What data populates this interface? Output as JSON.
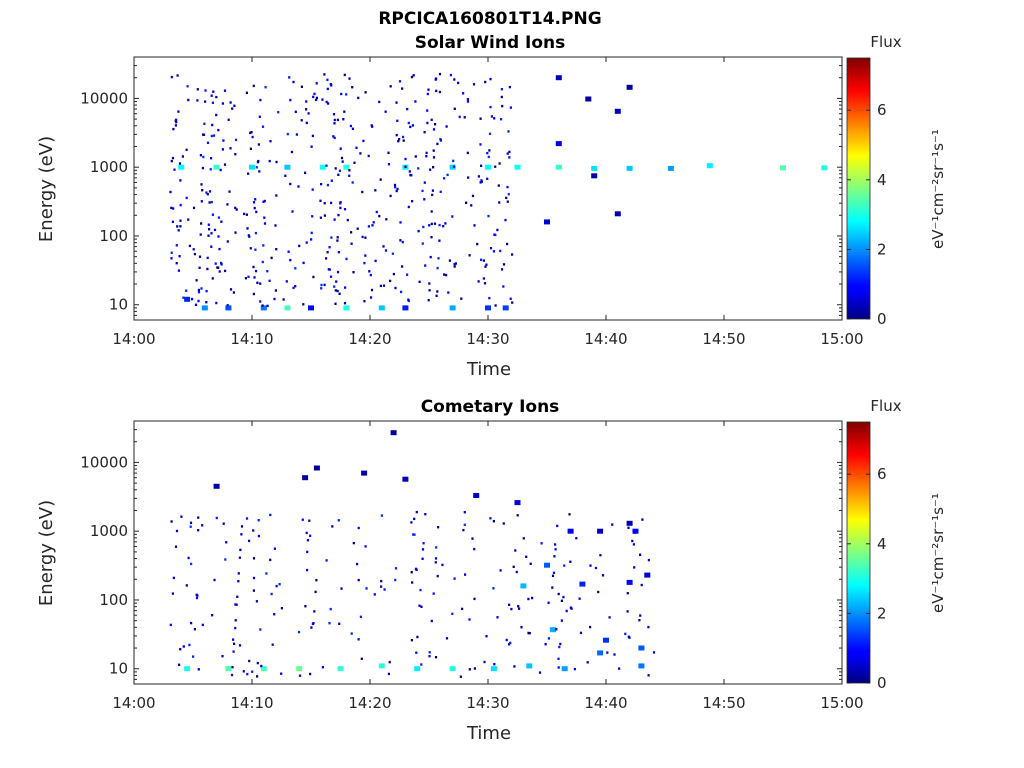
{
  "figure_title": "RPCICA160801T14.PNG",
  "colorbar": {
    "title": "Flux",
    "label": "eV⁻¹cm⁻²sr⁻¹s⁻¹",
    "ticks": [
      "0",
      "2",
      "4",
      "6"
    ],
    "range": [
      0,
      7.5
    ],
    "colormap": "jet"
  },
  "chart_data": [
    {
      "type": "heatmap",
      "title": "Solar Wind Ions",
      "xlabel": "Time",
      "ylabel": "Energy (eV)",
      "xlim": [
        "14:00",
        "15:00"
      ],
      "x_ticks": [
        "14:00",
        "14:10",
        "14:20",
        "14:30",
        "14:40",
        "14:50",
        "15:00"
      ],
      "y_scale": "log",
      "ylim": [
        6,
        40000
      ],
      "y_ticks": [
        "10",
        "100",
        "1000",
        "10000"
      ],
      "z_label": "Flux",
      "zlim": [
        0,
        7.5
      ],
      "cells": [
        {
          "t": "14:04",
          "e": 1000,
          "z": 2.8
        },
        {
          "t": "14:07",
          "e": 1000,
          "z": 3.2
        },
        {
          "t": "14:10",
          "e": 1000,
          "z": 2.6
        },
        {
          "t": "14:13",
          "e": 1000,
          "z": 2.4
        },
        {
          "t": "14:16",
          "e": 1000,
          "z": 2.9
        },
        {
          "t": "14:18",
          "e": 1000,
          "z": 3.1
        },
        {
          "t": "14:23",
          "e": 1000,
          "z": 2.7
        },
        {
          "t": "14:27",
          "e": 1000,
          "z": 2.5
        },
        {
          "t": "14:30",
          "e": 1000,
          "z": 2.8
        },
        {
          "t": "14:32.5",
          "e": 1000,
          "z": 2.9
        },
        {
          "t": "14:36",
          "e": 1000,
          "z": 3.2
        },
        {
          "t": "14:39",
          "e": 960,
          "z": 2.6
        },
        {
          "t": "14:42",
          "e": 960,
          "z": 2.4
        },
        {
          "t": "14:45.5",
          "e": 960,
          "z": 2.1
        },
        {
          "t": "14:48.8",
          "e": 1050,
          "z": 2.7
        },
        {
          "t": "14:55",
          "e": 980,
          "z": 3.4
        },
        {
          "t": "14:58.5",
          "e": 980,
          "z": 3.0
        },
        {
          "t": "14:38.5",
          "e": 9800,
          "z": 0.2
        },
        {
          "t": "14:41",
          "e": 6500,
          "z": 0.5
        },
        {
          "t": "14:42",
          "e": 14500,
          "z": 0.3
        },
        {
          "t": "14:36",
          "e": 20000,
          "z": 0.4
        },
        {
          "t": "14:41",
          "e": 210,
          "z": 0.4
        },
        {
          "t": "14:39",
          "e": 750,
          "z": 0.3
        },
        {
          "t": "14:35",
          "e": 160,
          "z": 0.6
        },
        {
          "t": "14:36",
          "e": 2200,
          "z": 0.8
        },
        {
          "t": "14:04.5",
          "e": 12,
          "z": 1.2
        },
        {
          "t": "14:06",
          "e": 9,
          "z": 2.0
        },
        {
          "t": "14:08",
          "e": 9,
          "z": 1.5
        },
        {
          "t": "14:11",
          "e": 9,
          "z": 1.8
        },
        {
          "t": "14:13",
          "e": 9,
          "z": 3.3
        },
        {
          "t": "14:15",
          "e": 9,
          "z": 1.0
        },
        {
          "t": "14:18",
          "e": 9,
          "z": 3.0
        },
        {
          "t": "14:21",
          "e": 9,
          "z": 2.4
        },
        {
          "t": "14:23",
          "e": 9,
          "z": 1.1
        },
        {
          "t": "14:27",
          "e": 9,
          "z": 2.2
        },
        {
          "t": "14:30",
          "e": 9,
          "z": 1.3
        },
        {
          "t": "14:31.5",
          "e": 9,
          "z": 1.4
        }
      ]
    },
    {
      "type": "heatmap",
      "title": "Cometary Ions",
      "xlabel": "Time",
      "ylabel": "Energy (eV)",
      "xlim": [
        "14:00",
        "15:00"
      ],
      "x_ticks": [
        "14:00",
        "14:10",
        "14:20",
        "14:30",
        "14:40",
        "14:50",
        "15:00"
      ],
      "y_scale": "log",
      "ylim": [
        6,
        40000
      ],
      "y_ticks": [
        "10",
        "100",
        "1000",
        "10000"
      ],
      "z_label": "Flux",
      "zlim": [
        0,
        7.5
      ],
      "cells": [
        {
          "t": "14:04.5",
          "e": 10,
          "z": 3.0
        },
        {
          "t": "14:08",
          "e": 10,
          "z": 3.4
        },
        {
          "t": "14:11",
          "e": 10,
          "z": 3.3
        },
        {
          "t": "14:14",
          "e": 10,
          "z": 3.6
        },
        {
          "t": "14:17.5",
          "e": 10,
          "z": 3.2
        },
        {
          "t": "14:21",
          "e": 11,
          "z": 3.1
        },
        {
          "t": "14:24",
          "e": 10,
          "z": 2.7
        },
        {
          "t": "14:27",
          "e": 10,
          "z": 3.0
        },
        {
          "t": "14:30.5",
          "e": 10,
          "z": 2.6
        },
        {
          "t": "14:33.5",
          "e": 11,
          "z": 2.4
        },
        {
          "t": "14:36.5",
          "e": 10,
          "z": 2.1
        },
        {
          "t": "14:39.5",
          "e": 17,
          "z": 1.7
        },
        {
          "t": "14:43",
          "e": 11,
          "z": 1.8
        },
        {
          "t": "14:43",
          "e": 20,
          "z": 1.6
        },
        {
          "t": "14:40",
          "e": 26,
          "z": 1.3
        },
        {
          "t": "14:35.5",
          "e": 37,
          "z": 2.2
        },
        {
          "t": "14:33",
          "e": 160,
          "z": 2.3
        },
        {
          "t": "14:35",
          "e": 320,
          "z": 1.6
        },
        {
          "t": "14:38",
          "e": 170,
          "z": 1.2
        },
        {
          "t": "14:42",
          "e": 180,
          "z": 1.0
        },
        {
          "t": "14:43.5",
          "e": 230,
          "z": 0.6
        },
        {
          "t": "14:32.5",
          "e": 2600,
          "z": 0.7
        },
        {
          "t": "14:37",
          "e": 1000,
          "z": 0.8
        },
        {
          "t": "14:39.5",
          "e": 1000,
          "z": 0.5
        },
        {
          "t": "14:42",
          "e": 1300,
          "z": 0.4
        },
        {
          "t": "14:42.5",
          "e": 1000,
          "z": 0.9
        },
        {
          "t": "14:22",
          "e": 27000,
          "z": 0.3
        },
        {
          "t": "14:15.5",
          "e": 8300,
          "z": 0.2
        },
        {
          "t": "14:19.5",
          "e": 7000,
          "z": 0.3
        },
        {
          "t": "14:23",
          "e": 5700,
          "z": 0.4
        },
        {
          "t": "14:29",
          "e": 3300,
          "z": 0.5
        },
        {
          "t": "14:07",
          "e": 4500,
          "z": 0.3
        },
        {
          "t": "14:14.5",
          "e": 6000,
          "z": 0.2
        }
      ]
    }
  ]
}
